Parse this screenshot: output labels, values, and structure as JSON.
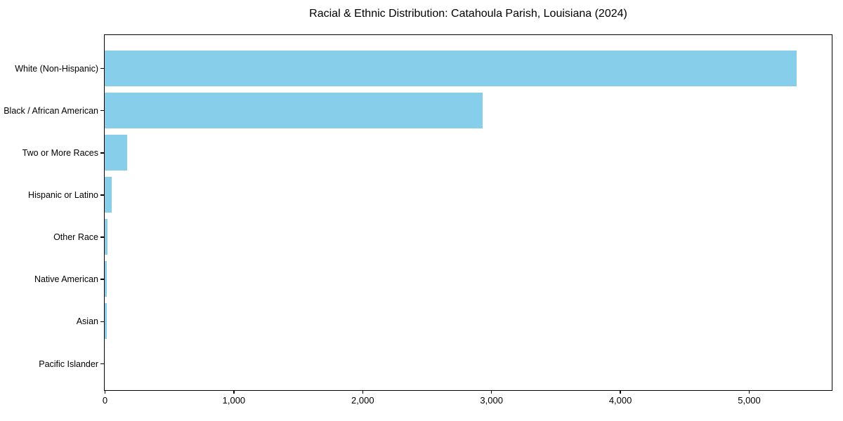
{
  "chart_data": {
    "type": "bar",
    "orientation": "horizontal",
    "title": "Racial & Ethnic Distribution: Catahoula Parish, Louisiana (2024)",
    "categories": [
      "White (Non-Hispanic)",
      "Black / African American",
      "Two or More Races",
      "Hispanic or Latino",
      "Other Race",
      "Native American",
      "Asian",
      "Pacific Islander"
    ],
    "values": [
      5370,
      2935,
      172,
      55,
      22,
      16,
      14,
      0
    ],
    "bar_color": "#87CEEB",
    "xlim": [
      0,
      5638
    ],
    "x_ticks": [
      0,
      1000,
      2000,
      3000,
      4000,
      5000
    ],
    "x_tick_labels": [
      "0",
      "1,000",
      "2,000",
      "3,000",
      "4,000",
      "5,000"
    ],
    "xlabel": "",
    "ylabel": "",
    "grid": false,
    "legend": "none"
  }
}
